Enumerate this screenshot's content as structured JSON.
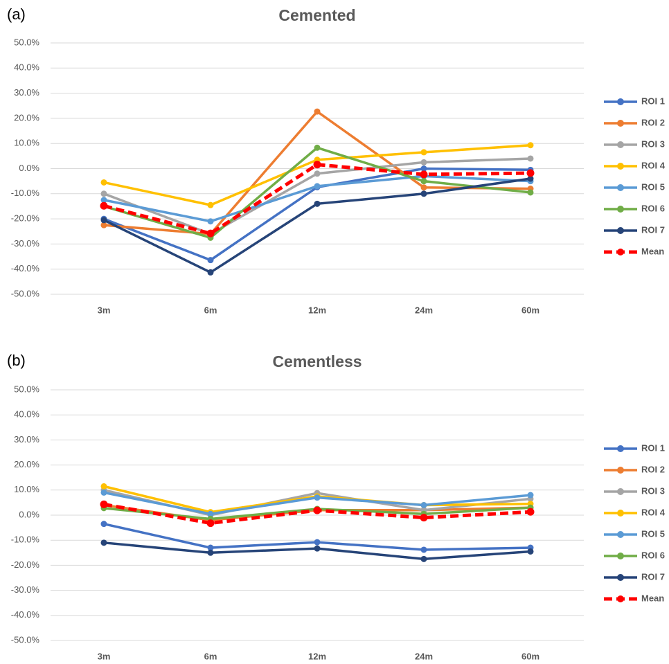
{
  "chart_data": [
    {
      "type": "line",
      "panel_label": "(a)",
      "title": "Cemented",
      "categories": [
        "3m",
        "6m",
        "12m",
        "24m",
        "60m"
      ],
      "ylim": [
        -50,
        50
      ],
      "yticks": [
        {
          "value": -50,
          "label": "-50.0%"
        },
        {
          "value": -40,
          "label": "-40.0%"
        },
        {
          "value": -30,
          "label": "-30.0%"
        },
        {
          "value": -20,
          "label": "-20.0%"
        },
        {
          "value": -10,
          "label": "-10.0%"
        },
        {
          "value": 0,
          "label": "0.0%"
        },
        {
          "value": 10,
          "label": "10.0%"
        },
        {
          "value": 20,
          "label": "20.0%"
        },
        {
          "value": 30,
          "label": "30.0%"
        },
        {
          "value": 40,
          "label": "40.0%"
        },
        {
          "value": 50,
          "label": "50.0%"
        }
      ],
      "grid": true,
      "legend": "right",
      "series": [
        {
          "name": "ROI 1",
          "color": "#4472c4",
          "values": [
            -20,
            -36.4,
            -7.4,
            0,
            -0.5
          ]
        },
        {
          "name": "ROI 2",
          "color": "#ed7d31",
          "values": [
            -22.5,
            -26,
            22.7,
            -7.5,
            -8
          ]
        },
        {
          "name": "ROI 3",
          "color": "#a5a5a5",
          "values": [
            -10,
            -26,
            -2,
            2.5,
            4
          ]
        },
        {
          "name": "ROI 4",
          "color": "#ffc000",
          "values": [
            -5.5,
            -14.5,
            3.5,
            6.5,
            9.3
          ]
        },
        {
          "name": "ROI 5",
          "color": "#5b9bd5",
          "values": [
            -12.5,
            -21,
            -7,
            -3,
            -5
          ]
        },
        {
          "name": "ROI 6",
          "color": "#70ad47",
          "values": [
            -15,
            -27.5,
            8.3,
            -5,
            -9.5
          ]
        },
        {
          "name": "ROI 7",
          "color": "#264478",
          "values": [
            -20.5,
            -41.3,
            -14,
            -10,
            -4
          ]
        },
        {
          "name": "Mean",
          "color": "#ff0000",
          "dashed": true,
          "values": [
            -14.8,
            -25.8,
            1.6,
            -2.3,
            -1.8
          ]
        }
      ]
    },
    {
      "type": "line",
      "panel_label": "(b)",
      "title": "Cementless",
      "categories": [
        "3m",
        "6m",
        "12m",
        "24m",
        "60m"
      ],
      "ylim": [
        -50,
        50
      ],
      "yticks": [
        {
          "value": -50,
          "label": "-50.0%"
        },
        {
          "value": -40,
          "label": "-40.0%"
        },
        {
          "value": -30,
          "label": "-30.0%"
        },
        {
          "value": -20,
          "label": "-20.0%"
        },
        {
          "value": -10,
          "label": "-10.0%"
        },
        {
          "value": 0,
          "label": "0.0%"
        },
        {
          "value": 10,
          "label": "10.0%"
        },
        {
          "value": 20,
          "label": "20.0%"
        },
        {
          "value": 30,
          "label": "30.0%"
        },
        {
          "value": 40,
          "label": "40.0%"
        },
        {
          "value": 50,
          "label": "50.0%"
        }
      ],
      "grid": true,
      "legend": "right",
      "series": [
        {
          "name": "ROI 1",
          "color": "#4472c4",
          "values": [
            -3.5,
            -13,
            -10.8,
            -13.8,
            -13
          ]
        },
        {
          "name": "ROI 2",
          "color": "#ed7d31",
          "values": [
            4,
            -2,
            2,
            2,
            3
          ]
        },
        {
          "name": "ROI 3",
          "color": "#a5a5a5",
          "values": [
            10,
            0,
            8.8,
            2,
            6.5
          ]
        },
        {
          "name": "ROI 4",
          "color": "#ffc000",
          "values": [
            11.5,
            1.2,
            7.5,
            4,
            4.5
          ]
        },
        {
          "name": "ROI 5",
          "color": "#5b9bd5",
          "values": [
            9,
            0.5,
            7,
            4,
            8
          ]
        },
        {
          "name": "ROI 6",
          "color": "#70ad47",
          "values": [
            2.8,
            -1.5,
            2.5,
            0.5,
            3
          ]
        },
        {
          "name": "ROI 7",
          "color": "#264478",
          "values": [
            -11,
            -15,
            -13.3,
            -17.5,
            -14.5
          ]
        },
        {
          "name": "Mean",
          "color": "#ff0000",
          "dashed": true,
          "values": [
            4.3,
            -3.2,
            1.9,
            -1,
            1.3
          ]
        }
      ]
    }
  ]
}
